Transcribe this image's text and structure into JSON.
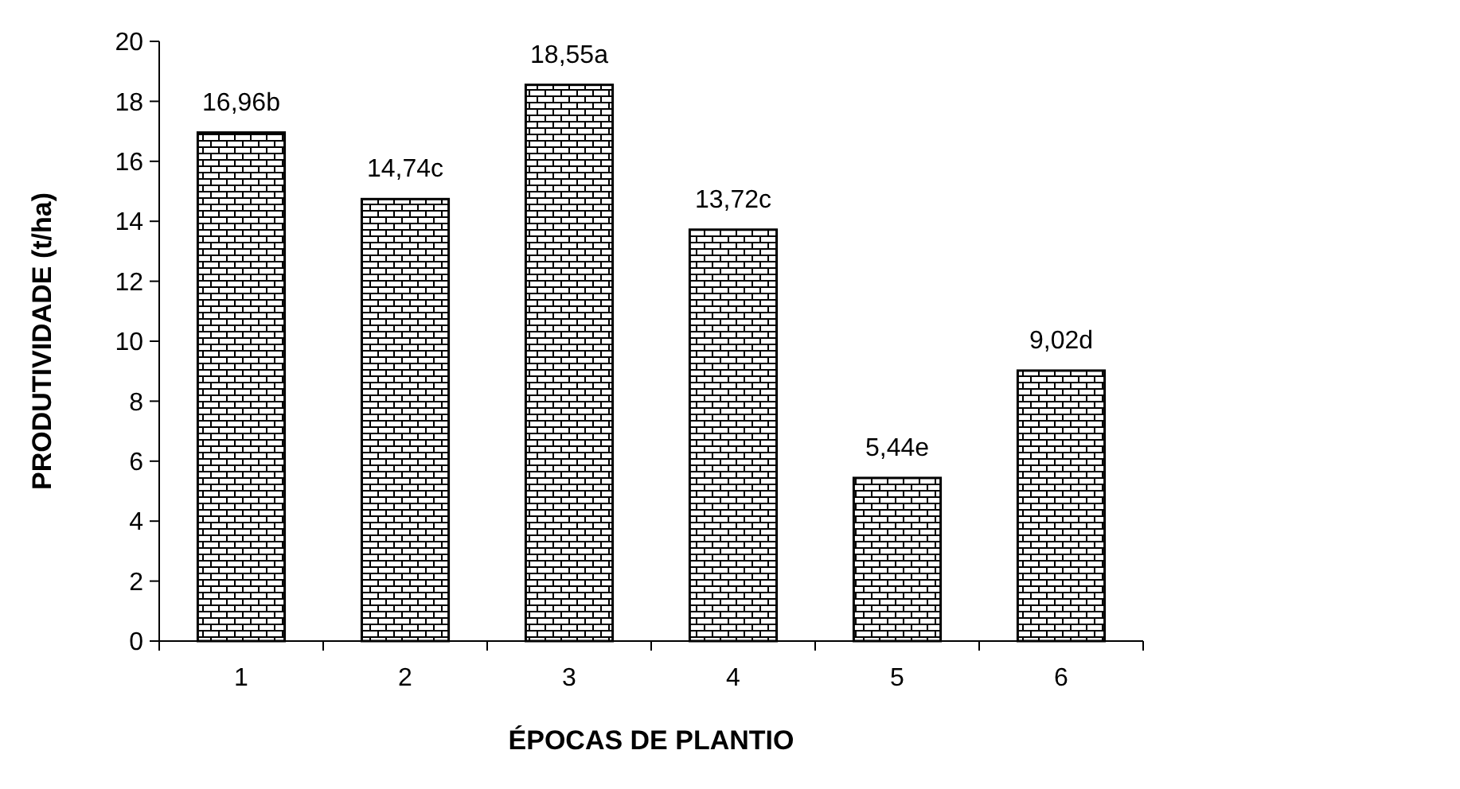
{
  "chart_data": {
    "type": "bar",
    "xlabel": "ÉPOCAS DE PLANTIO",
    "ylabel": "PRODUTIVIDADE (t/ha)",
    "categories": [
      "1",
      "2",
      "3",
      "4",
      "5",
      "6"
    ],
    "values": [
      16.96,
      14.74,
      18.55,
      13.72,
      5.44,
      9.02
    ],
    "value_labels": [
      "16,96b",
      "14,74c",
      "18,55a",
      "13,72c",
      "5,44e",
      "9,02d"
    ],
    "color": "#000000",
    "ylim": [
      0,
      20
    ],
    "yticks": [
      0,
      2,
      4,
      6,
      8,
      10,
      12,
      14,
      16,
      18,
      20
    ],
    "grid": false
  }
}
